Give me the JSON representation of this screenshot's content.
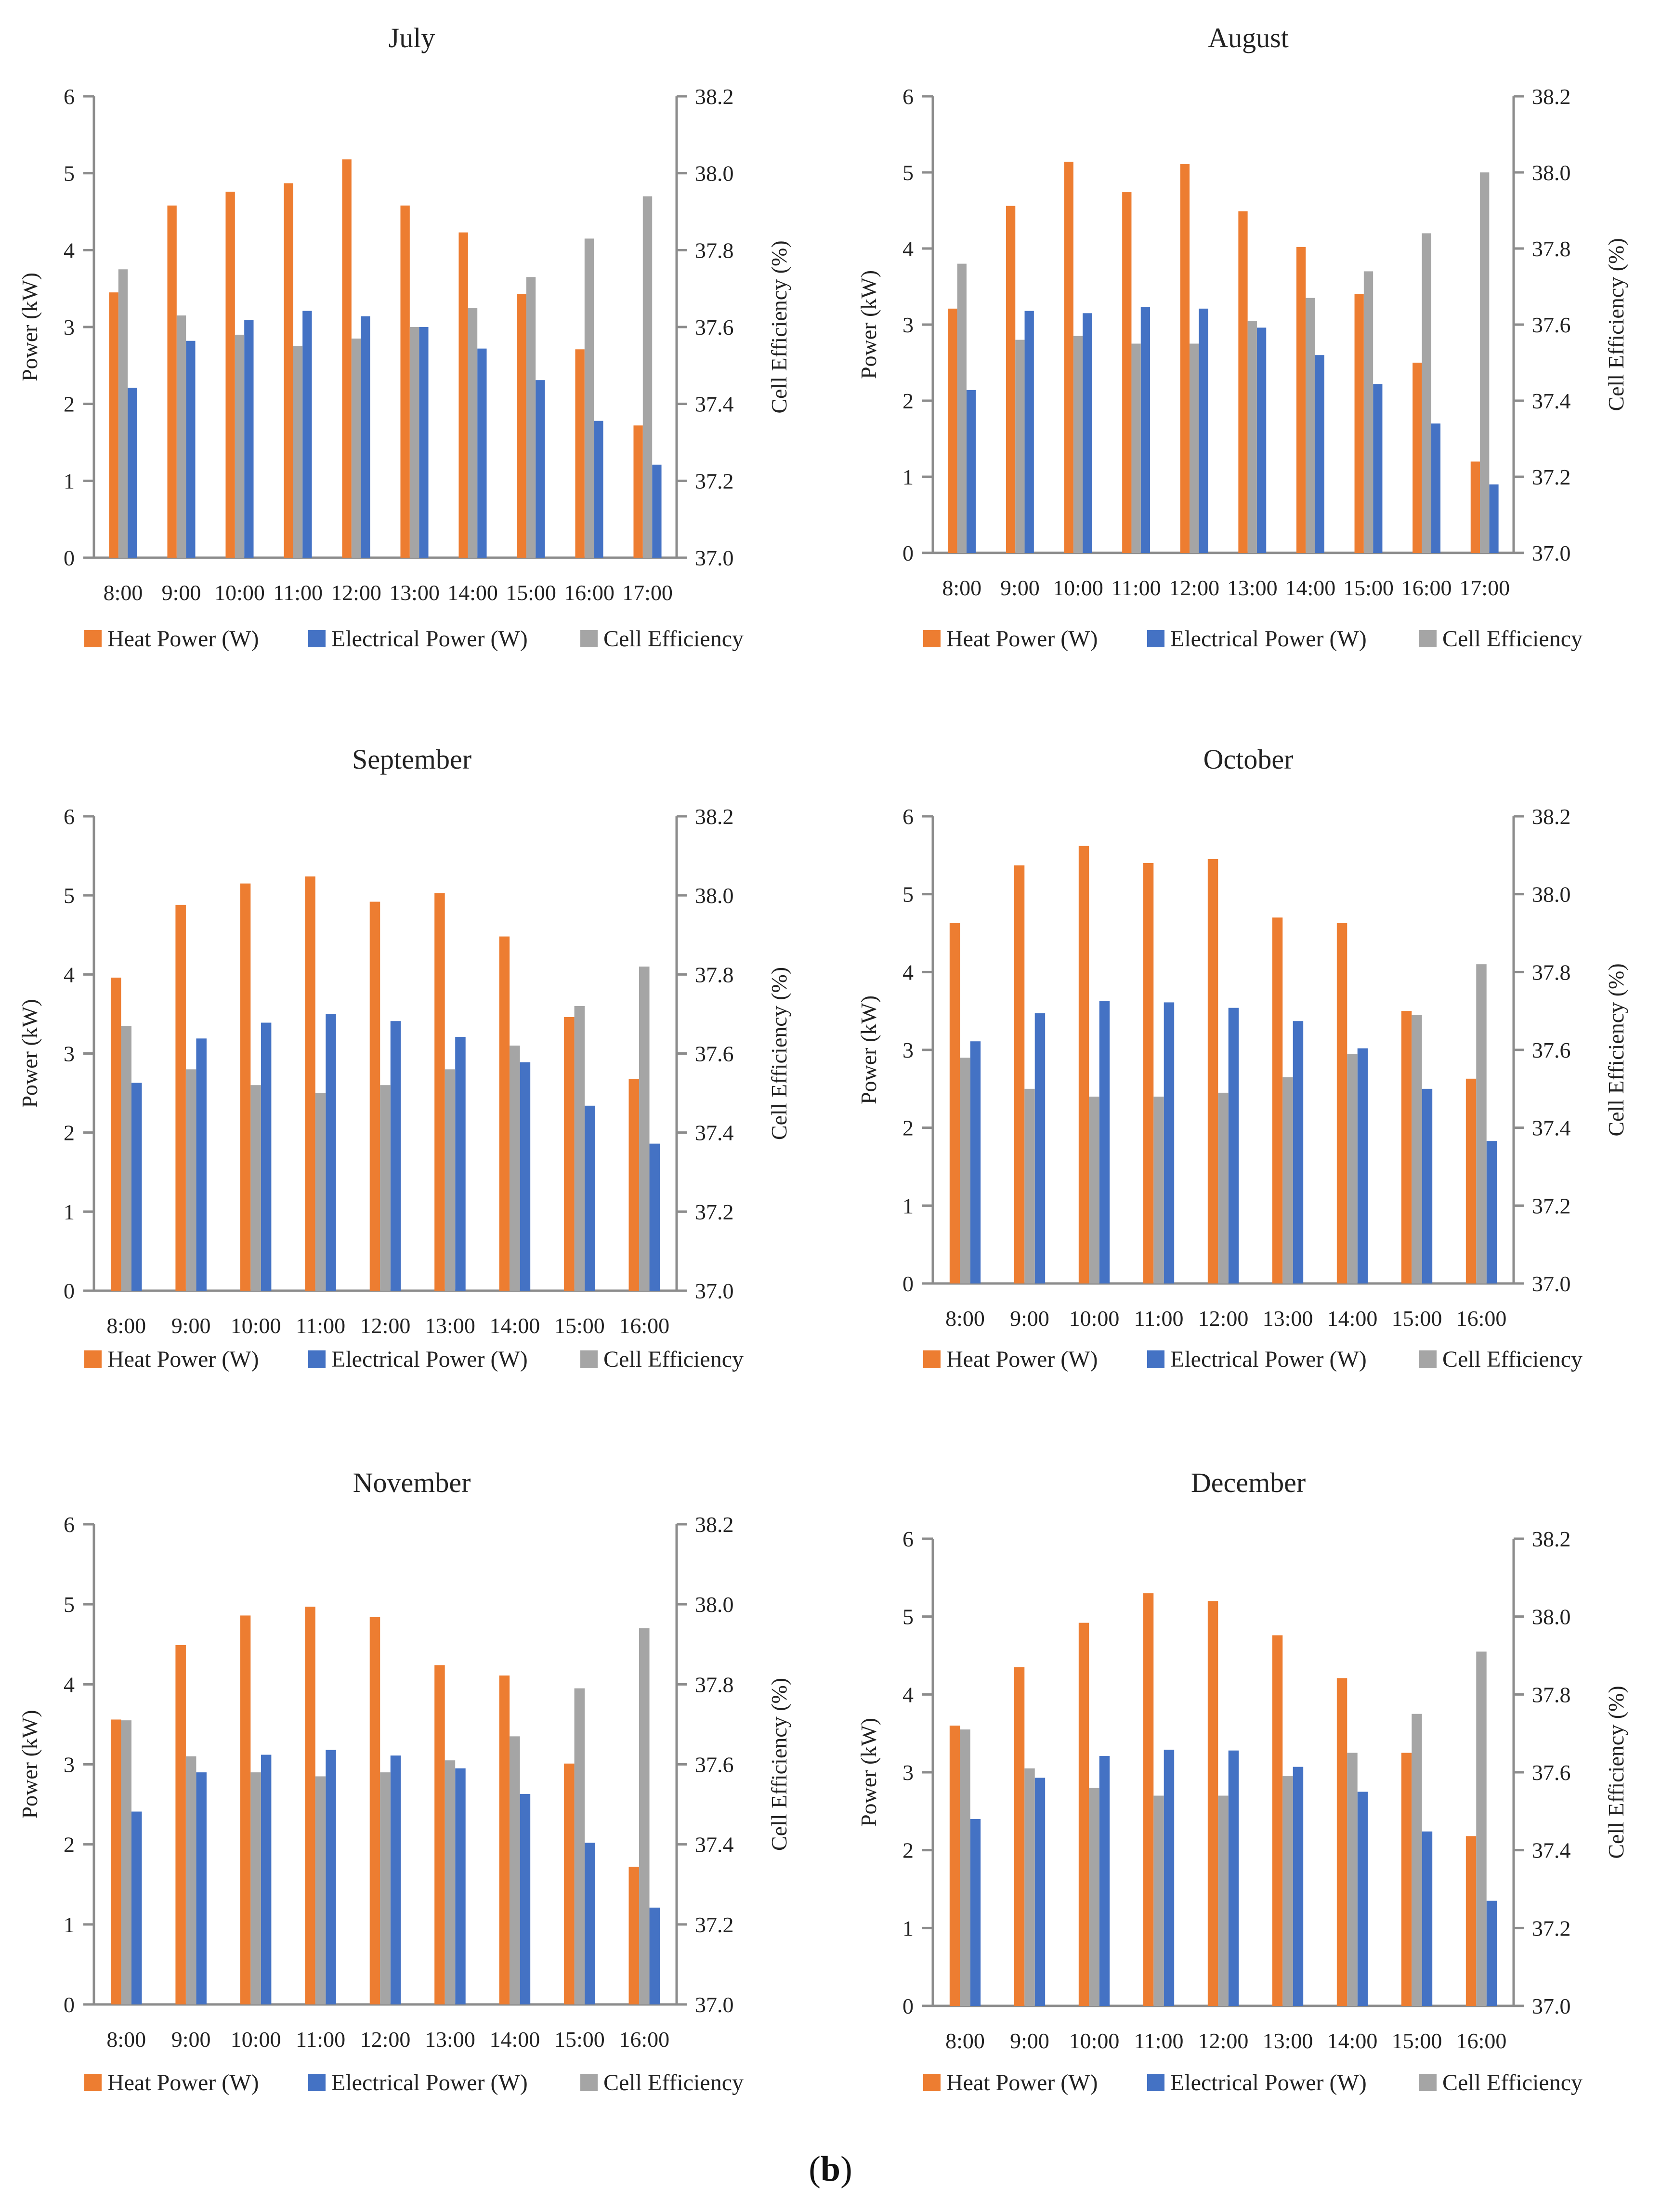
{
  "figure": {
    "caption_open": "(",
    "caption_letter": "b",
    "caption_close": ")"
  },
  "colors": {
    "heat": "#ED7D31",
    "electrical": "#4472C4",
    "efficiency": "#A5A5A5",
    "axis": "#8C8C8C"
  },
  "chart_data": [
    {
      "type": "bar",
      "title": "July",
      "categories": [
        "8:00",
        "9:00",
        "10:00",
        "11:00",
        "12:00",
        "13:00",
        "14:00",
        "15:00",
        "16:00",
        "17:00"
      ],
      "ylabel": "Power (kW)",
      "ylim": [
        0,
        6
      ],
      "yticks": [
        "0",
        "1",
        "2",
        "3",
        "4",
        "5",
        "6"
      ],
      "y2label": "Cell Efficiency (%)",
      "y2lim": [
        37.0,
        38.2
      ],
      "y2ticks": [
        "37.0",
        "37.2",
        "37.4",
        "37.6",
        "37.8",
        "38.0",
        "38.2"
      ],
      "series": [
        {
          "name": "Heat  Power (W)",
          "axis": "left",
          "values": [
            3.45,
            4.58,
            4.76,
            4.87,
            5.18,
            4.58,
            4.23,
            3.43,
            2.71,
            1.72
          ]
        },
        {
          "name": "Electrical  Power (W)",
          "axis": "left",
          "values": [
            2.21,
            2.82,
            3.09,
            3.21,
            3.14,
            3.0,
            2.72,
            2.31,
            1.78,
            1.21
          ]
        },
        {
          "name": "Cell Efficiency",
          "axis": "right",
          "values": [
            37.75,
            37.63,
            37.58,
            37.55,
            37.57,
            37.6,
            37.65,
            37.73,
            37.83,
            37.94
          ]
        }
      ]
    },
    {
      "type": "bar",
      "title": "August",
      "categories": [
        "8:00",
        "9:00",
        "10:00",
        "11:00",
        "12:00",
        "13:00",
        "14:00",
        "15:00",
        "16:00",
        "17:00"
      ],
      "ylabel": "Power (kW)",
      "ylim": [
        0,
        6
      ],
      "yticks": [
        "0",
        "1",
        "2",
        "3",
        "4",
        "5",
        "6"
      ],
      "y2label": "Cell Efficiency (%)",
      "y2lim": [
        37.0,
        38.2
      ],
      "y2ticks": [
        "37.0",
        "37.2",
        "37.4",
        "37.6",
        "37.8",
        "38.0",
        "38.2"
      ],
      "series": [
        {
          "name": "Heat  Power (W)",
          "axis": "left",
          "values": [
            3.21,
            4.56,
            5.14,
            4.74,
            5.11,
            4.49,
            4.02,
            3.4,
            2.5,
            1.2
          ]
        },
        {
          "name": "Electrical  Power (W)",
          "axis": "left",
          "values": [
            2.14,
            3.18,
            3.15,
            3.23,
            3.21,
            2.96,
            2.6,
            2.22,
            1.7,
            0.9
          ]
        },
        {
          "name": "Cell Efficiency",
          "axis": "right",
          "values": [
            37.76,
            37.56,
            37.57,
            37.55,
            37.55,
            37.61,
            37.67,
            37.74,
            37.84,
            38.0
          ]
        }
      ]
    },
    {
      "type": "bar",
      "title": "September",
      "categories": [
        "8:00",
        "9:00",
        "10:00",
        "11:00",
        "12:00",
        "13:00",
        "14:00",
        "15:00",
        "16:00"
      ],
      "ylabel": "Power (kW)",
      "ylim": [
        0,
        6
      ],
      "yticks": [
        "0",
        "1",
        "2",
        "3",
        "4",
        "5",
        "6"
      ],
      "y2label": "Cell Efficiency (%)",
      "y2lim": [
        37.0,
        38.2
      ],
      "y2ticks": [
        "37.0",
        "37.2",
        "37.4",
        "37.6",
        "37.8",
        "38.0",
        "38.2"
      ],
      "series": [
        {
          "name": "Heat  Power (W)",
          "axis": "left",
          "values": [
            3.96,
            4.88,
            5.15,
            5.24,
            4.92,
            5.03,
            4.48,
            3.46,
            2.68
          ]
        },
        {
          "name": "Electrical  Power (W)",
          "axis": "left",
          "values": [
            2.63,
            3.19,
            3.39,
            3.5,
            3.41,
            3.21,
            2.89,
            2.34,
            1.86
          ]
        },
        {
          "name": "Cell Efficiency",
          "axis": "right",
          "values": [
            37.67,
            37.56,
            37.52,
            37.5,
            37.52,
            37.56,
            37.62,
            37.72,
            37.82
          ]
        }
      ]
    },
    {
      "type": "bar",
      "title": "October",
      "categories": [
        "8:00",
        "9:00",
        "10:00",
        "11:00",
        "12:00",
        "13:00",
        "14:00",
        "15:00",
        "16:00"
      ],
      "ylabel": "Power (kW)",
      "ylim": [
        0,
        6
      ],
      "yticks": [
        "0",
        "1",
        "2",
        "3",
        "4",
        "5",
        "6"
      ],
      "y2label": "Cell Efficiency (%)",
      "y2lim": [
        37.0,
        38.2
      ],
      "y2ticks": [
        "37.0",
        "37.2",
        "37.4",
        "37.6",
        "37.8",
        "38.0",
        "38.2"
      ],
      "series": [
        {
          "name": "Heat  Power (W)",
          "axis": "left",
          "values": [
            4.63,
            5.37,
            5.62,
            5.4,
            5.45,
            4.7,
            4.63,
            3.5,
            2.63
          ]
        },
        {
          "name": "Electrical  Power (W)",
          "axis": "left",
          "values": [
            3.11,
            3.47,
            3.63,
            3.61,
            3.54,
            3.37,
            3.02,
            2.5,
            1.83
          ]
        },
        {
          "name": "Cell Efficiency",
          "axis": "right",
          "values": [
            37.58,
            37.5,
            37.48,
            37.48,
            37.49,
            37.53,
            37.59,
            37.69,
            37.82
          ]
        }
      ]
    },
    {
      "type": "bar",
      "title": "November",
      "categories": [
        "8:00",
        "9:00",
        "10:00",
        "11:00",
        "12:00",
        "13:00",
        "14:00",
        "15:00",
        "16:00"
      ],
      "ylabel": "Power (kW)",
      "ylim": [
        0,
        6
      ],
      "yticks": [
        "0",
        "1",
        "2",
        "3",
        "4",
        "5",
        "6"
      ],
      "y2label": "Cell Efficiency (%)",
      "y2lim": [
        37.0,
        38.2
      ],
      "y2ticks": [
        "37.0",
        "37.2",
        "37.4",
        "37.6",
        "37.8",
        "38.0",
        "38.2"
      ],
      "series": [
        {
          "name": "Heat  Power (W)",
          "axis": "left",
          "values": [
            3.56,
            4.49,
            4.86,
            4.97,
            4.84,
            4.24,
            4.11,
            3.01,
            1.72
          ]
        },
        {
          "name": "Electrical  Power (W)",
          "axis": "left",
          "values": [
            2.41,
            2.9,
            3.12,
            3.18,
            3.11,
            2.95,
            2.63,
            2.02,
            1.21
          ]
        },
        {
          "name": "Cell Efficiency",
          "axis": "right",
          "values": [
            37.71,
            37.62,
            37.58,
            37.57,
            37.58,
            37.61,
            37.67,
            37.79,
            37.94
          ]
        }
      ]
    },
    {
      "type": "bar",
      "title": "December",
      "categories": [
        "8:00",
        "9:00",
        "10:00",
        "11:00",
        "12:00",
        "13:00",
        "14:00",
        "15:00",
        "16:00"
      ],
      "ylabel": "Power (kW)",
      "ylim": [
        0,
        6
      ],
      "yticks": [
        "0",
        "1",
        "2",
        "3",
        "4",
        "5",
        "6"
      ],
      "y2label": "Cell Efficiency (%)",
      "y2lim": [
        37.0,
        38.2
      ],
      "y2ticks": [
        "37.0",
        "37.2",
        "37.4",
        "37.6",
        "37.8",
        "38.0",
        "38.2"
      ],
      "series": [
        {
          "name": "Heat  Power (W)",
          "axis": "left",
          "values": [
            3.6,
            4.35,
            4.92,
            5.3,
            5.2,
            4.76,
            4.21,
            3.25,
            2.18
          ]
        },
        {
          "name": "Electrical  Power (W)",
          "axis": "left",
          "values": [
            2.4,
            2.93,
            3.21,
            3.29,
            3.28,
            3.07,
            2.75,
            2.24,
            1.35
          ]
        },
        {
          "name": "Cell Efficiency",
          "axis": "right",
          "values": [
            37.71,
            37.61,
            37.56,
            37.54,
            37.54,
            37.59,
            37.65,
            37.75,
            37.91
          ]
        }
      ]
    }
  ]
}
